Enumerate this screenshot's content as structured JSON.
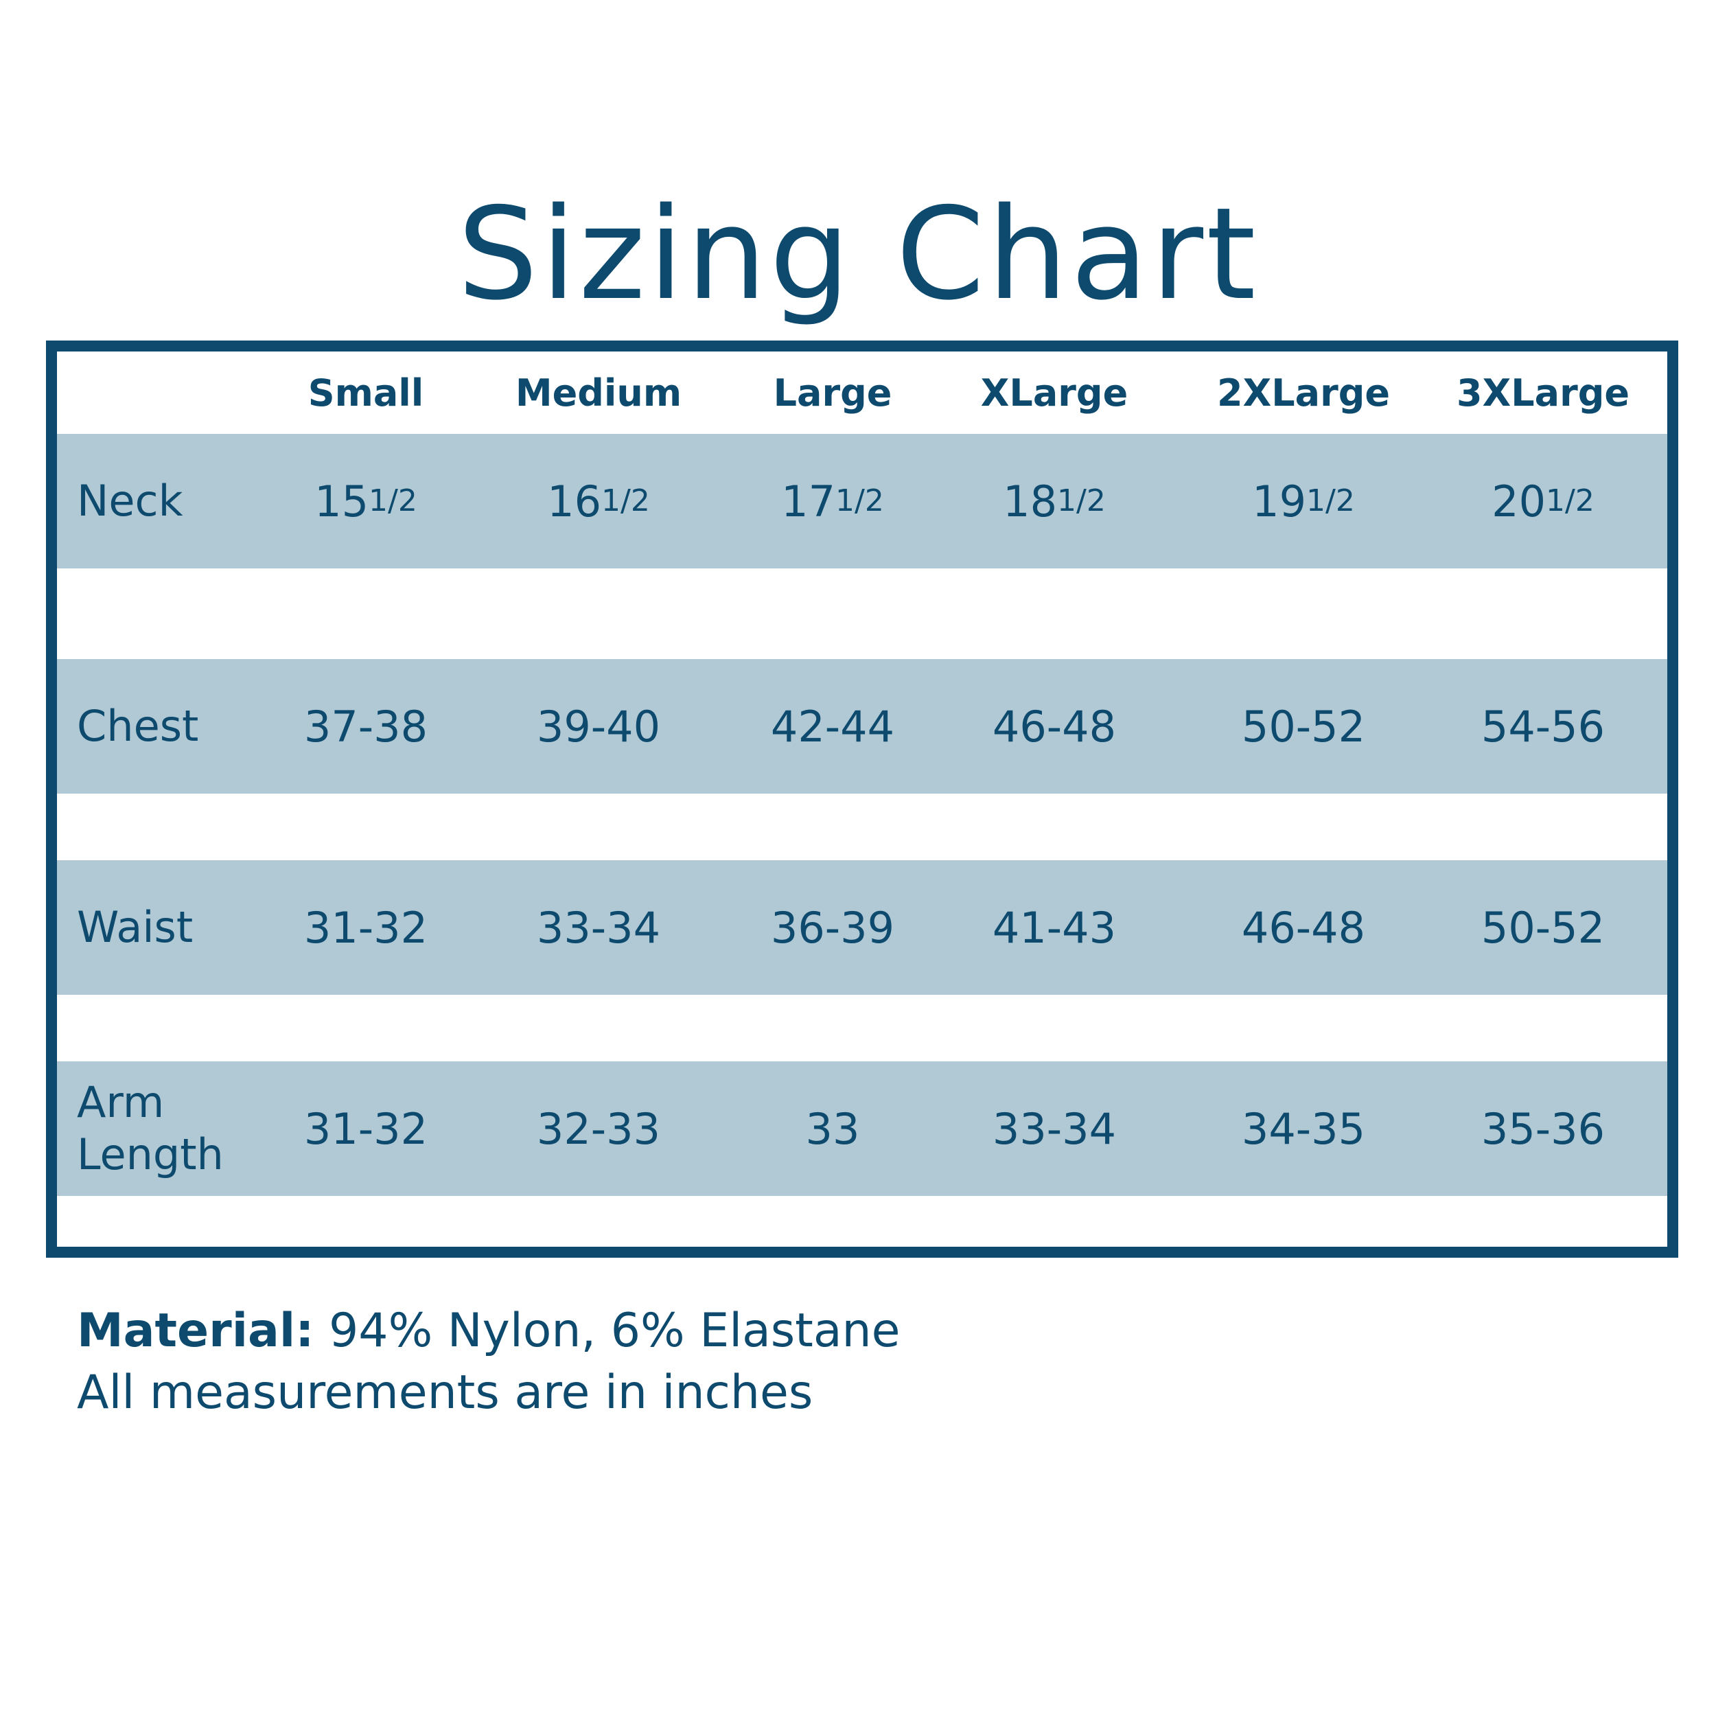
{
  "title": "Sizing Chart",
  "table": {
    "columns": [
      "Small",
      "Medium",
      "Large",
      "XLarge",
      "2XLarge",
      "3XLarge"
    ],
    "rows": [
      {
        "label": "Neck",
        "cells": [
          {
            "whole": "15",
            "fraction": "1/2"
          },
          {
            "whole": "16",
            "fraction": "1/2"
          },
          {
            "whole": "17",
            "fraction": "1/2"
          },
          {
            "whole": "18",
            "fraction": "1/2"
          },
          {
            "whole": "19",
            "fraction": "1/2"
          },
          {
            "whole": "20",
            "fraction": "1/2"
          }
        ]
      },
      {
        "label": "Chest",
        "cells": [
          "37-38",
          "39-40",
          "42-44",
          "46-48",
          "50-52",
          "54-56"
        ]
      },
      {
        "label": "Waist",
        "cells": [
          "31-32",
          "33-34",
          "36-39",
          "41-43",
          "46-48",
          "50-52"
        ]
      },
      {
        "label": "Arm Length",
        "cells": [
          "31-32",
          "32-33",
          "33",
          "33-34",
          "34-35",
          "35-36"
        ]
      }
    ]
  },
  "footer": {
    "material_label": "Material:",
    "material": "94% Nylon, 6% Elastane",
    "note": "All measurements are in inches"
  }
}
